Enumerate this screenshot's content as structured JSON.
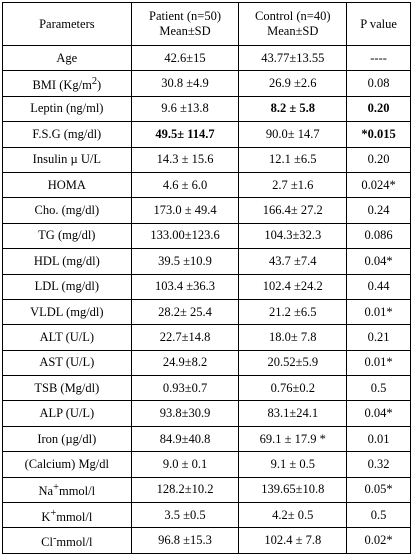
{
  "table": {
    "headers": {
      "parameters": "Parameters",
      "patient_line1": "Patient (n=50)",
      "patient_line2": "Mean±SD",
      "control_line1": "Control (n=40)",
      "control_line2": "Mean±SD",
      "p_value": "P value"
    },
    "rows": [
      {
        "param": "Age",
        "patient": "42.6±15",
        "control": "43.77±13.55",
        "p": "----"
      },
      {
        "param_prefix": "BMI (Kg/m",
        "param_sup": "2",
        "param_suffix": ")",
        "patient": "30.8 ±4.9",
        "control": "26.9 ±2.6",
        "p": "0.08"
      },
      {
        "param": "Leptin (ng/ml)",
        "patient": "9.6 ±13.8",
        "control": "8.2 ± 5.8",
        "p": "0.20",
        "bold_control": true,
        "bold_p": true
      },
      {
        "param": "F.S.G (mg/dl)",
        "patient": "49.5± 114.7",
        "control": "90.0± 14.7",
        "p": "*0.015",
        "bold_patient": true,
        "bold_p": true
      },
      {
        "param": "Insulin µ U/L",
        "patient": "14.3 ± 15.6",
        "control": "12.1 ±6.5",
        "p": "0.20"
      },
      {
        "param": "HOMA",
        "patient": "4.6 ± 6.0",
        "control": "2.7 ±1.6",
        "p": "0.024*"
      },
      {
        "param": "Cho. (mg/dl)",
        "patient": "173.0 ± 49.4",
        "control": "166.4± 27.2",
        "p": "0.24"
      },
      {
        "param": "TG (mg/dl)",
        "patient": "133.00±123.6",
        "control": "104.3±32.3",
        "p": "0.086"
      },
      {
        "param": "HDL (mg/dl)",
        "patient": "39.5 ±10.9",
        "control": "43.7 ±7.4",
        "p": "0.04*"
      },
      {
        "param": "LDL (mg/dl)",
        "patient": "103.4 ±36.3",
        "control": "102.4 ±24.2",
        "p": "0.44"
      },
      {
        "param": "VLDL (mg/dl)",
        "patient": "28.2± 25.4",
        "control": "21.2 ±6.5",
        "p": "0.01*"
      },
      {
        "param": "ALT (U/L)",
        "patient": "22.7±14.8",
        "control": "18.0± 7.8",
        "p": "0.21"
      },
      {
        "param": "AST (U/L)",
        "patient": "24.9±8.2",
        "control": "20.52±5.9",
        "p": "0.01*"
      },
      {
        "param": "TSB (Mg/dl)",
        "patient": "0.93±0.7",
        "control": "0.76±0.2",
        "p": "0.5"
      },
      {
        "param": "ALP (U/L)",
        "patient": "93.8±30.9",
        "control": "83.1±24.1",
        "p": "0.04*"
      },
      {
        "param": "Iron (µg/dl)",
        "patient": "84.9±40.8",
        "control": "69.1 ± 17.9 *",
        "p": "0.01"
      },
      {
        "param": "(Calcium) Mg/dl",
        "patient": "9.0 ± 0.1",
        "control": "9.1 ± 0.5",
        "p": "0.32"
      },
      {
        "param_prefix": "Na",
        "param_sup": "+",
        "param_suffix": "mmol/l",
        "patient": "128.2±10.2",
        "control": "139.65±10.8",
        "p": "0.05*"
      },
      {
        "param_prefix": "K",
        "param_sup": "+",
        "param_suffix": "mmol/l",
        "patient": "3.5 ±0.5",
        "control": "4.2± 0.5",
        "p": "0.5"
      },
      {
        "param_prefix": "Cl",
        "param_sup": "-",
        "param_suffix": "mmol/l",
        "patient": "96.8 ±15.3",
        "control": "102.4 ± 7.8",
        "p": "0.02*"
      }
    ]
  }
}
